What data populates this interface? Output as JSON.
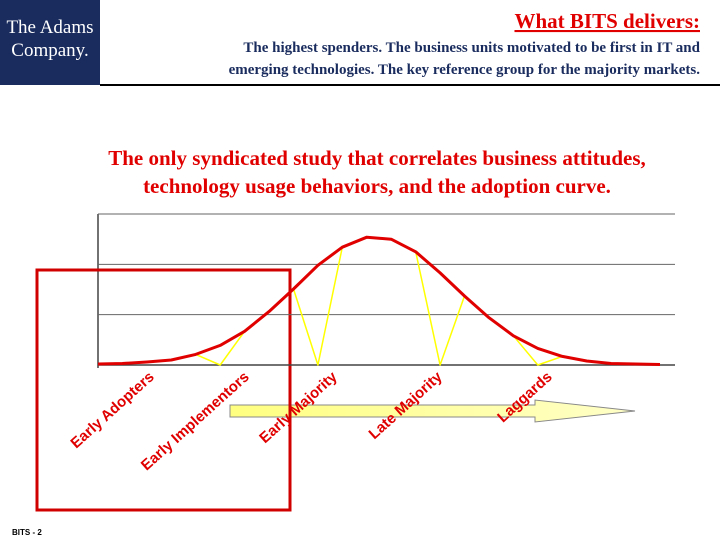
{
  "header": {
    "logo": [
      "The Adams",
      "Company."
    ],
    "title": "What BITS delivers:",
    "subtitle": [
      "The highest spenders.   The business units motivated to be first in IT and",
      "emerging technologies.  The key reference group for the majority markets."
    ]
  },
  "headline": [
    "The only syndicated study that correlates business attitudes,",
    "technology usage behaviors, and the adoption curve."
  ],
  "chart_data": {
    "type": "line",
    "categories": [
      null,
      null,
      null,
      null,
      null,
      null,
      null,
      null,
      null,
      null,
      null,
      null,
      null,
      null,
      null,
      null,
      null,
      null,
      null,
      null,
      null,
      null,
      null,
      null
    ],
    "series": [
      {
        "color": "#ffff00",
        "values": [
          0.02,
          0.03,
          0.06,
          0.1,
          0.21,
          0,
          0.67,
          1.06,
          1.51,
          0,
          2.34,
          2.54,
          2.5,
          2.25,
          0,
          1.37,
          0.94,
          0.58,
          0,
          0.17,
          0.08,
          0.03,
          0.02,
          0.01
        ]
      },
      {
        "color": "#e00000",
        "values": [
          0.02,
          0.03,
          0.06,
          0.1,
          0.21,
          0.39,
          0.67,
          1.06,
          1.51,
          1.98,
          2.34,
          2.54,
          2.5,
          2.25,
          1.83,
          1.37,
          0.94,
          0.58,
          0.33,
          0.17,
          0.08,
          0.03,
          0.02,
          0.01
        ]
      }
    ],
    "ylim": [
      0,
      3
    ],
    "yticks": [
      0,
      1,
      2,
      3
    ],
    "grid": true,
    "segment_labels": [
      "Early Adopters",
      "Early Implementors",
      "Early Majority",
      "Late Majority",
      "Laggards"
    ]
  },
  "footer": "BITS - 2"
}
